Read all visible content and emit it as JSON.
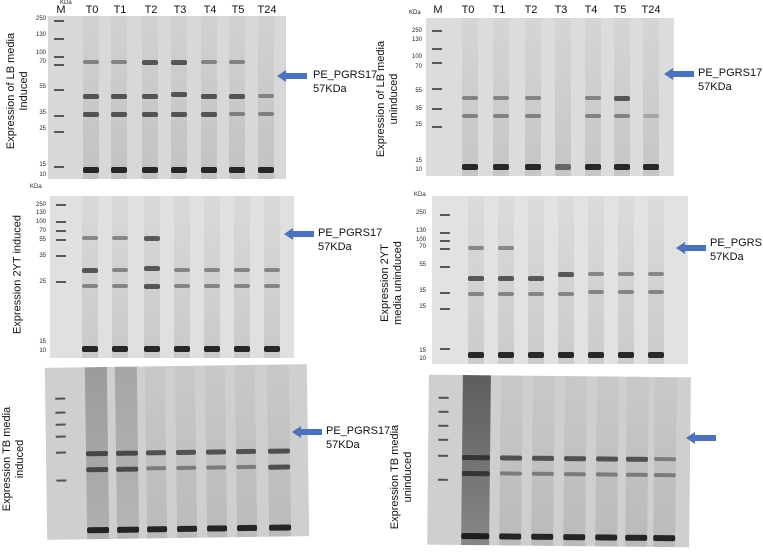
{
  "lane_labels": [
    "M",
    "T0",
    "T1",
    "T2",
    "T3",
    "T4",
    "T5",
    "T24"
  ],
  "kda_unit": "KDa",
  "protein_label": "PE_PGRS17",
  "protein_size": "57KDa",
  "panels": {
    "lb_induced": {
      "side_label_line1": "Expression of LB media",
      "side_label_line2": "Induced",
      "markers": [
        "250",
        "130",
        "100",
        "70",
        "55",
        "35",
        "25",
        "15",
        "10"
      ]
    },
    "lb_uninduced": {
      "side_label_line1": "Expression of LB media",
      "side_label_line2": "uninduced",
      "markers": [
        "250",
        "130",
        "100",
        "70",
        "55",
        "35",
        "25",
        "15",
        "10"
      ]
    },
    "yt_induced": {
      "side_label_line1": "Expression 2YT induced",
      "side_label_line2": "",
      "markers": [
        "250",
        "130",
        "100",
        "70",
        "55",
        "35",
        "25",
        "15",
        "10"
      ]
    },
    "yt_uninduced": {
      "side_label_line1": "Expression 2YT",
      "side_label_line2": "media uninduced",
      "markers": [
        "250",
        "130",
        "100",
        "70",
        "55",
        "35",
        "25",
        "15",
        "10"
      ]
    },
    "tb_induced": {
      "side_label_line1": "Expression TB media",
      "side_label_line2": "induced"
    },
    "tb_uninduced": {
      "side_label_line1": "Expression TB media",
      "side_label_line2": "uninduced"
    }
  },
  "colors": {
    "arrow": "#4a72c4",
    "gel": "#d8d8d8",
    "band": "#222222"
  }
}
